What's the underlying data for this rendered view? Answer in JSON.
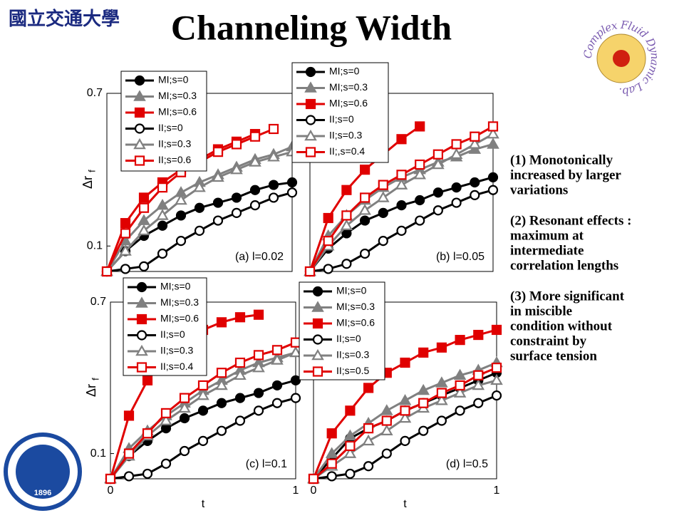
{
  "title": "Channeling Width",
  "logo_left": "國立交通大學",
  "logo_right": "Complex Fluid Dynamic Lab.",
  "logo_bottom": "1896",
  "notes": [
    [
      "(1) Monotonically",
      "increased by larger",
      "variations"
    ],
    [
      "(2) Resonant effects :",
      "maximum at",
      "intermediate",
      "correlation lengths"
    ],
    [
      "(3) More significant",
      "in miscible",
      "condition without",
      "constraint by",
      "surface tension"
    ]
  ],
  "chart_data": [
    {
      "type": "line",
      "annotation": "(a) l=0.02",
      "ylabel": "Δr",
      "ylabel_sub": "f",
      "x": [
        0,
        0.1,
        0.2,
        0.3,
        0.4,
        0.5,
        0.6,
        0.7,
        0.8,
        0.9,
        1
      ],
      "xlim": [
        0,
        1
      ],
      "ylim": [
        0,
        0.7
      ],
      "yticks": [
        0.1,
        0.7
      ],
      "series": [
        {
          "name": "MI;s=0",
          "color": "#000000",
          "marker": "circle",
          "filled": true,
          "values": [
            0,
            0.08,
            0.14,
            0.18,
            0.22,
            0.25,
            0.27,
            0.29,
            0.32,
            0.34,
            0.35
          ]
        },
        {
          "name": "MI;s=0.3",
          "color": "#808080",
          "marker": "triangle",
          "filled": true,
          "values": [
            0,
            0.12,
            0.2,
            0.26,
            0.31,
            0.35,
            0.38,
            0.41,
            0.44,
            0.46,
            0.49
          ]
        },
        {
          "name": "MI;s=0.6",
          "color": "#e00000",
          "marker": "square",
          "filled": true,
          "values": [
            0,
            0.19,
            0.29,
            0.35,
            0.4,
            0.44,
            0.48,
            0.51,
            0.54,
            null,
            null
          ]
        },
        {
          "name": "II;s=0",
          "color": "#000000",
          "marker": "circle",
          "filled": false,
          "values": [
            0,
            0.01,
            0.02,
            0.07,
            0.12,
            0.16,
            0.2,
            0.23,
            0.26,
            0.29,
            0.31
          ]
        },
        {
          "name": "II;s=0.3",
          "color": "#808080",
          "marker": "triangle",
          "filled": false,
          "values": [
            0,
            0.08,
            0.16,
            0.22,
            0.28,
            0.33,
            0.37,
            0.4,
            0.43,
            0.45,
            0.47
          ]
        },
        {
          "name": "II;s=0.6",
          "color": "#e00000",
          "marker": "square",
          "filled": false,
          "values": [
            0,
            0.15,
            0.25,
            0.33,
            0.39,
            0.43,
            0.47,
            0.5,
            0.53,
            0.56,
            null
          ]
        }
      ]
    },
    {
      "type": "line",
      "annotation": "(b) l=0.05",
      "x": [
        0,
        0.1,
        0.2,
        0.3,
        0.4,
        0.5,
        0.6,
        0.7,
        0.8,
        0.9,
        1
      ],
      "xlim": [
        0,
        1
      ],
      "ylim": [
        0,
        0.7
      ],
      "series": [
        {
          "name": "MI;s=0",
          "color": "#000000",
          "marker": "circle",
          "filled": true,
          "values": [
            0,
            0.09,
            0.15,
            0.2,
            0.23,
            0.26,
            0.28,
            0.31,
            0.33,
            0.35,
            0.37
          ]
        },
        {
          "name": "MI;s=0.3",
          "color": "#808080",
          "marker": "triangle",
          "filled": true,
          "values": [
            0,
            0.14,
            0.22,
            0.28,
            0.33,
            0.37,
            0.4,
            0.43,
            0.45,
            0.48,
            0.5
          ]
        },
        {
          "name": "MI;s=0.6",
          "color": "#e00000",
          "marker": "square",
          "filled": true,
          "values": [
            0,
            0.21,
            0.32,
            0.4,
            0.46,
            0.52,
            0.57,
            null,
            null,
            null,
            null
          ]
        },
        {
          "name": "II;s=0",
          "color": "#000000",
          "marker": "circle",
          "filled": false,
          "values": [
            0,
            0.01,
            0.03,
            0.07,
            0.12,
            0.16,
            0.2,
            0.24,
            0.27,
            0.3,
            0.32
          ]
        },
        {
          "name": "II;s=0.3",
          "color": "#808080",
          "marker": "triangle",
          "filled": false,
          "values": [
            0,
            0.1,
            0.18,
            0.24,
            0.29,
            0.34,
            0.38,
            0.42,
            0.46,
            0.5,
            0.54
          ]
        },
        {
          "name": "II;,s=0.4",
          "color": "#e00000",
          "marker": "square",
          "filled": false,
          "values": [
            0,
            0.12,
            0.22,
            0.29,
            0.34,
            0.38,
            0.42,
            0.46,
            0.5,
            0.53,
            0.57
          ]
        }
      ]
    },
    {
      "type": "line",
      "annotation": "(c) l=0.1",
      "ylabel": "Δr",
      "ylabel_sub": "f",
      "xlabel": "t",
      "x": [
        0,
        0.1,
        0.2,
        0.3,
        0.4,
        0.5,
        0.6,
        0.7,
        0.8,
        0.9,
        1
      ],
      "xlim": [
        0,
        1
      ],
      "xticks": [
        0,
        1
      ],
      "ylim": [
        0,
        0.7
      ],
      "yticks": [
        0.1,
        0.7
      ],
      "series": [
        {
          "name": "MI;s=0",
          "color": "#000000",
          "marker": "circle",
          "filled": true,
          "values": [
            0,
            0.09,
            0.15,
            0.2,
            0.24,
            0.27,
            0.3,
            0.32,
            0.34,
            0.37,
            0.39
          ]
        },
        {
          "name": "MI;s=0.3",
          "color": "#808080",
          "marker": "triangle",
          "filled": true,
          "values": [
            0,
            0.12,
            0.19,
            0.25,
            0.3,
            0.35,
            0.39,
            0.43,
            0.46,
            0.48,
            0.5
          ]
        },
        {
          "name": "MI;s=0.6",
          "color": "#e00000",
          "marker": "square",
          "filled": true,
          "values": [
            0,
            0.25,
            0.39,
            0.48,
            0.55,
            0.59,
            0.62,
            0.64,
            0.65,
            null,
            null
          ]
        },
        {
          "name": "II;s=0",
          "color": "#000000",
          "marker": "circle",
          "filled": false,
          "values": [
            0,
            0.01,
            0.02,
            0.06,
            0.11,
            0.15,
            0.19,
            0.23,
            0.27,
            0.3,
            0.32
          ]
        },
        {
          "name": "II;s=0.3",
          "color": "#808080",
          "marker": "triangle",
          "filled": false,
          "values": [
            0,
            0.09,
            0.17,
            0.23,
            0.28,
            0.33,
            0.37,
            0.41,
            0.44,
            0.47,
            0.5
          ]
        },
        {
          "name": "II;s=0.4",
          "color": "#e00000",
          "marker": "square",
          "filled": false,
          "values": [
            0,
            0.1,
            0.18,
            0.26,
            0.32,
            0.37,
            0.42,
            0.46,
            0.49,
            0.51,
            0.54
          ]
        }
      ]
    },
    {
      "type": "line",
      "annotation": "(d) l=0.5",
      "xlabel": "t",
      "x": [
        0,
        0.1,
        0.2,
        0.3,
        0.4,
        0.5,
        0.6,
        0.7,
        0.8,
        0.9,
        1
      ],
      "xlim": [
        0,
        1
      ],
      "xticks": [
        0,
        1
      ],
      "ylim": [
        0,
        0.7
      ],
      "series": [
        {
          "name": "MI;s=0",
          "color": "#000000",
          "marker": "circle",
          "filled": true,
          "values": [
            0,
            0.08,
            0.16,
            0.2,
            0.23,
            0.27,
            0.3,
            0.33,
            0.36,
            0.39,
            0.42
          ]
        },
        {
          "name": "MI;s=0.3",
          "color": "#808080",
          "marker": "triangle",
          "filled": true,
          "values": [
            0,
            0.1,
            0.17,
            0.22,
            0.27,
            0.31,
            0.35,
            0.38,
            0.41,
            0.43,
            0.46
          ]
        },
        {
          "name": "MI;s=0.6",
          "color": "#e00000",
          "marker": "square",
          "filled": true,
          "values": [
            0,
            0.18,
            0.27,
            0.36,
            0.42,
            0.46,
            0.5,
            0.52,
            0.55,
            0.57,
            0.59
          ]
        },
        {
          "name": "II;s=0",
          "color": "#000000",
          "marker": "circle",
          "filled": false,
          "values": [
            0,
            0.01,
            0.02,
            0.05,
            0.1,
            0.15,
            0.19,
            0.23,
            0.27,
            0.3,
            0.33
          ]
        },
        {
          "name": "II;s=0.3",
          "color": "#808080",
          "marker": "triangle",
          "filled": false,
          "values": [
            0,
            0.05,
            0.1,
            0.15,
            0.19,
            0.24,
            0.28,
            0.31,
            0.34,
            0.37,
            0.39
          ]
        },
        {
          "name": "II;s=0.5",
          "color": "#e00000",
          "marker": "square",
          "filled": false,
          "values": [
            0,
            0.06,
            0.13,
            0.2,
            0.23,
            0.27,
            0.3,
            0.34,
            0.37,
            0.41,
            0.44
          ]
        }
      ]
    }
  ]
}
